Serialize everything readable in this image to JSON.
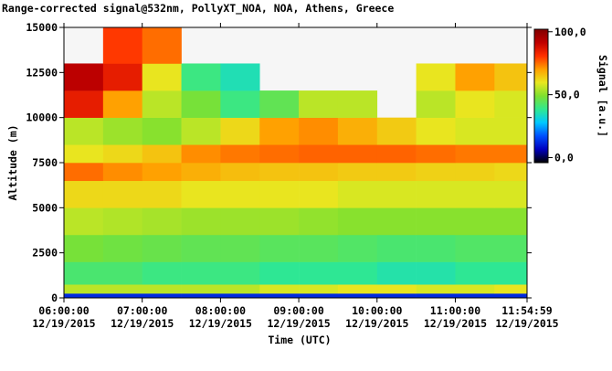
{
  "chart_data": {
    "type": "heatmap",
    "title": "Range-corrected signal@532nm, PollyXT_NOA, NOA, Athens, Greece",
    "x_label": "Time (UTC)",
    "y_label": "Altitude (m)",
    "colorbar_label": "Signal [a.u.]",
    "xlim": [
      6,
      11.91639
    ],
    "xticks": [
      {
        "value": 6,
        "label": "06:00:00",
        "date": "12/19/2015"
      },
      {
        "value": 7,
        "label": "07:00:00",
        "date": "12/19/2015"
      },
      {
        "value": 8,
        "label": "08:00:00",
        "date": "12/19/2015"
      },
      {
        "value": 9,
        "label": "09:00:00",
        "date": "12/19/2015"
      },
      {
        "value": 10,
        "label": "10:00:00",
        "date": "12/19/2015"
      },
      {
        "value": 11,
        "label": "11:00:00",
        "date": "12/19/2015"
      },
      {
        "value": 11.91639,
        "label": "11:54:59",
        "date": "12/19/2015"
      }
    ],
    "ylim": [
      0,
      15000
    ],
    "yticks": [
      0,
      2500,
      5000,
      7500,
      10000,
      12500,
      15000
    ],
    "zlim": [
      -4,
      102
    ],
    "zticks": [
      {
        "value": 0,
        "label": "0,0"
      },
      {
        "value": 50,
        "label": "50,0"
      },
      {
        "value": 100,
        "label": "100,0"
      }
    ],
    "colorscale": [
      "#000000",
      "#0000c0",
      "#0050ff",
      "#00c8ff",
      "#30e890",
      "#7ee030",
      "#e8e820",
      "#ffa000",
      "#ff3000",
      "#c00000",
      "#800000"
    ],
    "xbins": [
      6,
      6.5,
      7,
      7.5,
      8,
      8.5,
      9,
      9.5,
      10,
      10.5,
      11,
      11.5,
      11.91639
    ],
    "ybins": [
      0,
      250,
      750,
      2000,
      3500,
      5000,
      6500,
      7500,
      8500,
      10000,
      11500,
      13000,
      15000
    ],
    "z": [
      [
        12,
        12,
        12,
        12,
        12,
        12,
        12,
        12,
        12,
        12,
        12,
        12
      ],
      [
        55,
        55,
        55,
        55,
        55,
        58,
        58,
        60,
        60,
        58,
        58,
        60
      ],
      [
        42,
        42,
        40,
        40,
        40,
        38,
        38,
        38,
        36,
        36,
        38,
        38
      ],
      [
        48,
        47,
        46,
        45,
        45,
        44,
        44,
        43,
        42,
        42,
        43,
        43
      ],
      [
        55,
        54,
        53,
        52,
        52,
        52,
        51,
        50,
        50,
        50,
        50,
        50
      ],
      [
        62,
        62,
        62,
        60,
        60,
        60,
        60,
        58,
        58,
        58,
        58,
        58
      ],
      [
        75,
        72,
        70,
        68,
        66,
        65,
        65,
        64,
        64,
        63,
        63,
        62
      ],
      [
        60,
        62,
        65,
        72,
        74,
        75,
        76,
        76,
        76,
        75,
        74,
        74
      ],
      [
        55,
        52,
        50,
        55,
        62,
        70,
        72,
        68,
        64,
        60,
        58,
        58
      ],
      [
        85,
        70,
        55,
        48,
        40,
        45,
        55,
        55,
        null,
        55,
        60,
        58
      ],
      [
        92,
        85,
        60,
        40,
        35,
        null,
        null,
        null,
        null,
        60,
        70,
        65
      ],
      [
        null,
        80,
        75,
        null,
        null,
        null,
        null,
        null,
        null,
        null,
        null,
        null
      ]
    ]
  }
}
